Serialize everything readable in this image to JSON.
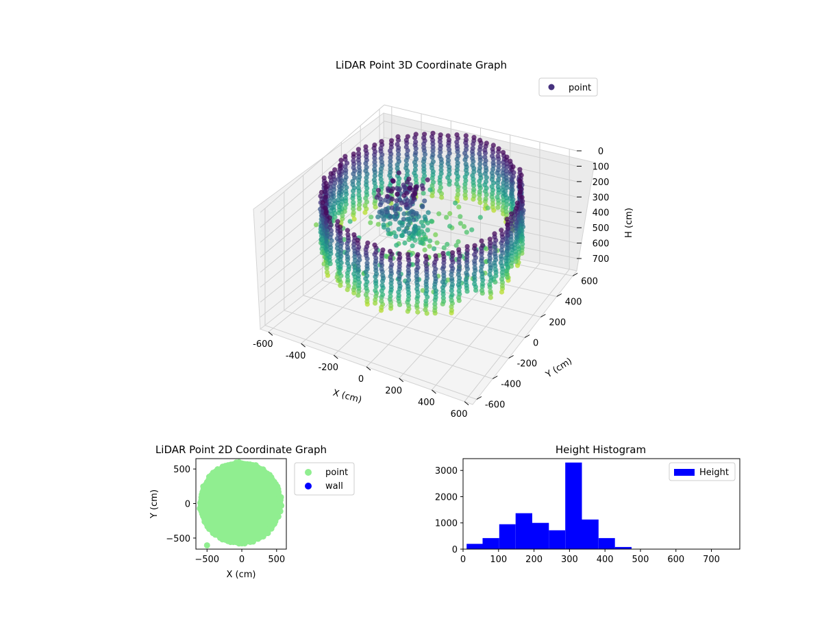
{
  "chart_data": [
    {
      "type": "scatter",
      "projection": "3d",
      "title": "LiDAR Point 3D Coordinate Graph",
      "xlabel": "X (cm)",
      "ylabel": "Y (cm)",
      "zlabel": "H (cm)",
      "xlim": [
        -650,
        650
      ],
      "ylim": [
        -650,
        650
      ],
      "zlim": [
        780,
        0
      ],
      "z_inverted": true,
      "x_ticks": [
        -600,
        -400,
        -200,
        0,
        200,
        400,
        600
      ],
      "y_ticks": [
        -600,
        -400,
        -200,
        0,
        200,
        400,
        600
      ],
      "z_ticks": [
        0,
        100,
        200,
        300,
        400,
        500,
        600,
        700
      ],
      "legend": [
        {
          "label": "point",
          "color": "#46327e"
        }
      ],
      "legend_position": "upper-right",
      "colormap": "viridis",
      "grid": true,
      "shape": "circular room wall, radius ≈ 550 cm, heights ≈ 0–470 cm"
    },
    {
      "type": "scatter",
      "title": "LiDAR Point 2D Coordinate Graph",
      "xlabel": "X (cm)",
      "ylabel": "Y (cm)",
      "xlim": [
        -660,
        640
      ],
      "ylim": [
        -660,
        650
      ],
      "x_ticks": [
        -500,
        0,
        500
      ],
      "y_ticks": [
        -500,
        0,
        500
      ],
      "series": [
        {
          "name": "point",
          "color": "#90ee90",
          "shape": "filled disc radius ≈ 580 cm"
        },
        {
          "name": "wall",
          "color": "#0000ff",
          "shape": "none visible"
        }
      ],
      "outlier_points": [
        {
          "x": -500,
          "y": -605
        }
      ],
      "legend_position": "outside-right"
    },
    {
      "type": "bar",
      "subtype": "histogram",
      "title": "Height Histogram",
      "xlim": [
        0,
        780
      ],
      "ylim": [
        0,
        3450
      ],
      "x_ticks": [
        0,
        100,
        200,
        300,
        400,
        500,
        600,
        700
      ],
      "y_ticks": [
        0,
        1000,
        2000,
        3000
      ],
      "series": [
        {
          "name": "Height",
          "color": "#0000ff",
          "bin_edges": [
            10,
            55,
            102,
            148,
            195,
            242,
            288,
            335,
            382,
            428,
            475,
            522,
            568,
            615,
            662,
            708,
            755
          ],
          "values": [
            200,
            420,
            950,
            1370,
            1000,
            720,
            3300,
            1130,
            420,
            80,
            0,
            0,
            0,
            0,
            0,
            0
          ]
        }
      ],
      "legend_position": "upper-right"
    }
  ]
}
